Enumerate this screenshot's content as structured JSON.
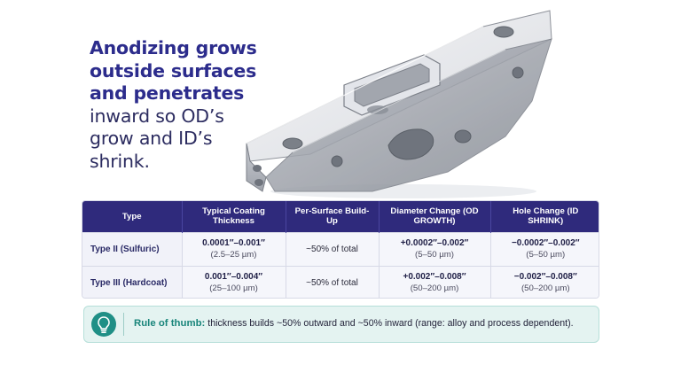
{
  "headline": {
    "bold_lines": [
      "Anodizing grows",
      "outside surfaces",
      "and penetrates"
    ],
    "light_lines": [
      "inward so OD’s",
      "grow and ID’s",
      "shrink."
    ]
  },
  "table": {
    "headers": {
      "type": "Type",
      "thickness": "Typical Coating Thickness",
      "buildup": "Per-Surface Build-Up",
      "diameter": "Diameter Change (OD GROWTH)",
      "hole": "Hole Change (ID SHRINK)"
    },
    "rows": [
      {
        "type": "Type II (Sulfuric)",
        "thickness_in": "0.0001″–0.001″",
        "thickness_um": "(2.5–25 µm)",
        "buildup": "~50% of total",
        "diameter_in": "+0.0002″–0.002″",
        "diameter_um": "(5–50 µm)",
        "hole_in": "−0.0002″–0.002″",
        "hole_um": "(5–50 µm)"
      },
      {
        "type": "Type III (Hardcoat)",
        "thickness_in": "0.001″–0.004″",
        "thickness_um": "(25–100 µm)",
        "buildup": "~50% of total",
        "diameter_in": "+0.002″–0.008″",
        "diameter_um": "(50–200 µm)",
        "hole_in": "−0.002″–0.008″",
        "hole_um": "(50–200 µm)"
      }
    ]
  },
  "rule": {
    "icon": "lightbulb-icon",
    "title": "Rule of thumb:",
    "text": " thickness builds ~50% outward and ~50% inward (range: alloy and process dependent)."
  },
  "colors": {
    "header_bg": "#2f2a7c",
    "headline_bold": "#2c2c8c",
    "accent_teal": "#1f8f86",
    "rule_bg": "#e4f3f1"
  }
}
